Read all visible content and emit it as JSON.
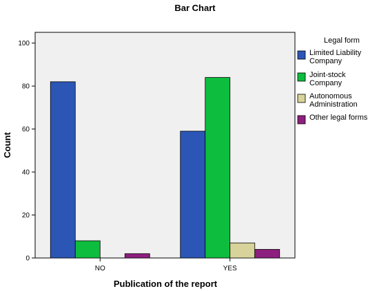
{
  "chart_data": {
    "type": "bar",
    "title": "Bar Chart",
    "xlabel": "Publication of the report",
    "ylabel": "Count",
    "categories": [
      "NO",
      "YES"
    ],
    "ylim": [
      0,
      105
    ],
    "yticks": [
      0,
      20,
      40,
      60,
      80,
      100
    ],
    "grid": false,
    "legend": {
      "title": "Legal form",
      "placement": "right"
    },
    "series": [
      {
        "name": "Limited Liability Company",
        "name_lines": [
          "Limited Liability",
          "Company"
        ],
        "color": "#2b56b5",
        "values": [
          82,
          59
        ]
      },
      {
        "name": "Joint-stock Company",
        "name_lines": [
          "Joint-stock",
          "Company"
        ],
        "color": "#0dbd3e",
        "values": [
          8,
          84
        ]
      },
      {
        "name": "Autonomous Administration",
        "name_lines": [
          "Autonomous",
          "Administration"
        ],
        "color": "#d8d39a",
        "values": [
          0,
          7
        ]
      },
      {
        "name": "Other legal forms",
        "name_lines": [
          "Other legal forms"
        ],
        "color": "#8d1f7e",
        "values": [
          2,
          4
        ]
      }
    ]
  }
}
